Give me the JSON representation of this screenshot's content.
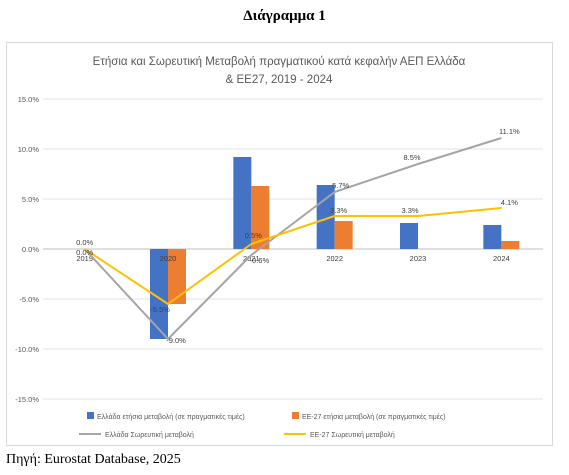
{
  "page": {
    "heading": "Διάγραμμα 1",
    "source": "Πηγή: Eurostat Database, 2025"
  },
  "chart_data": {
    "type": "bar",
    "title_line1": "Ετήσια και Σωρευτική Μεταβολή πραγματικού κατά κεφαλήν ΑΕΠ Ελλάδα",
    "title_line2": "& ΕΕ27, 2019 - 2024",
    "categories": [
      "2019",
      "2020",
      "2021",
      "2022",
      "2023",
      "2024"
    ],
    "y_ticks": [
      "15.0%",
      "10.0%",
      "5.0%",
      "0.0%",
      "-5.0%",
      "-10.0%",
      "-15.0%"
    ],
    "ylim": [
      -15,
      15
    ],
    "grid": true,
    "legend_position": "bottom",
    "series": [
      {
        "name": "Ελλάδα ετήσια μεταβολή (σε πραγματικές τιμές)",
        "kind": "bar",
        "color": "#4472c4",
        "values": [
          0,
          -9.0,
          9.2,
          6.4,
          2.6,
          2.4
        ]
      },
      {
        "name": "ΕΕ-27 ετήσια μεταβολή (σε πραγματικές τιμές)",
        "kind": "bar",
        "color": "#ed7d31",
        "values": [
          0,
          -5.5,
          6.3,
          2.8,
          0,
          0.8
        ]
      },
      {
        "name": "Ελλάδα Σωρευτική μεταβολή",
        "kind": "line",
        "color": "#a5a5a5",
        "values": [
          0,
          -9.0,
          -0.6,
          5.7,
          8.5,
          11.1
        ],
        "labels": [
          "0.0%",
          "-9.0%",
          "-0.6%",
          "5.7%",
          "8.5%",
          "11.1%"
        ]
      },
      {
        "name": "ΕΕ-27 Σωρευτική μεταβολή",
        "kind": "line",
        "color": "#ffc000",
        "values": [
          0,
          -5.5,
          0.5,
          3.3,
          3.3,
          4.1
        ],
        "labels": [
          "0.0%",
          "-5.5%",
          "0.5%",
          "3.3%",
          "3.3%",
          "4.1%"
        ]
      }
    ]
  }
}
